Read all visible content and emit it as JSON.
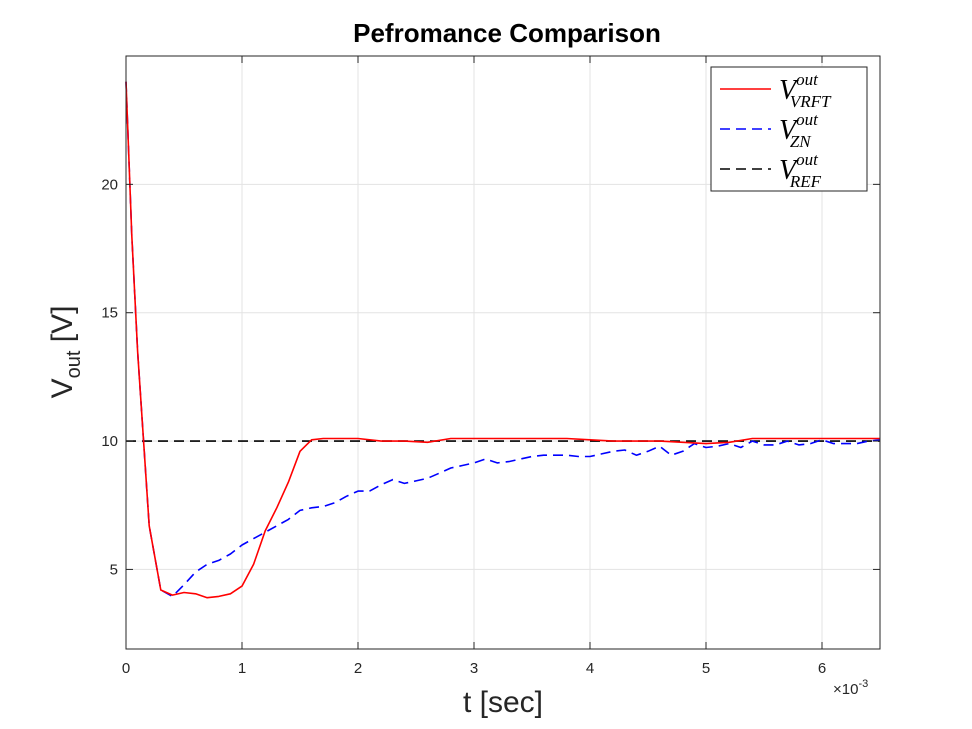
{
  "chart_data": {
    "type": "line",
    "title": "Pefromance Comparison",
    "xlabel": "t [sec]",
    "ylabel_main": "V",
    "ylabel_sub": "out",
    "ylabel_rest": " [V]",
    "x_exponent_prefix": "×10",
    "x_exponent": "-3",
    "xlim": [
      0,
      6.5
    ],
    "ylim": [
      1.9,
      25
    ],
    "xticks": [
      0,
      1,
      2,
      3,
      4,
      5,
      6
    ],
    "xtick_labels": [
      "0",
      "1",
      "2",
      "3",
      "4",
      "5",
      "6"
    ],
    "yticks": [
      5,
      10,
      15,
      20
    ],
    "ytick_labels": [
      "5",
      "10",
      "15",
      "20"
    ],
    "grid": true,
    "legend_location": "top-right",
    "series": [
      {
        "legend_main": "V",
        "legend_sup": "out",
        "legend_sub": "VRFT",
        "color": "#ff0000",
        "dash": "solid",
        "x": [
          0,
          0.05,
          0.1,
          0.2,
          0.3,
          0.4,
          0.5,
          0.6,
          0.7,
          0.8,
          0.9,
          1.0,
          1.1,
          1.2,
          1.3,
          1.4,
          1.5,
          1.6,
          1.7,
          1.8,
          1.9,
          2.0,
          2.2,
          2.4,
          2.6,
          2.8,
          3.0,
          3.2,
          3.4,
          3.6,
          3.8,
          4.0,
          4.2,
          4.4,
          4.6,
          4.8,
          5.0,
          5.2,
          5.4,
          5.6,
          5.8,
          6.0,
          6.2,
          6.4,
          6.5
        ],
        "y": [
          24,
          18,
          13.5,
          6.7,
          4.2,
          4.0,
          4.1,
          4.05,
          3.9,
          3.95,
          4.05,
          4.35,
          5.2,
          6.5,
          7.4,
          8.4,
          9.6,
          10.05,
          10.1,
          10.1,
          10.1,
          10.1,
          10.0,
          10.0,
          9.95,
          10.1,
          10.1,
          10.1,
          10.1,
          10.1,
          10.1,
          10.05,
          10.0,
          10.0,
          10.0,
          9.95,
          9.9,
          9.95,
          10.1,
          10.1,
          10.1,
          10.1,
          10.1,
          10.1,
          10.1
        ]
      },
      {
        "legend_main": "V",
        "legend_sup": "out",
        "legend_sub": "ZN",
        "color": "#0000ff",
        "dash": "dashed",
        "x": [
          0,
          0.05,
          0.1,
          0.2,
          0.3,
          0.4,
          0.5,
          0.6,
          0.7,
          0.8,
          0.9,
          1.0,
          1.1,
          1.2,
          1.3,
          1.4,
          1.5,
          1.6,
          1.7,
          1.8,
          1.9,
          2.0,
          2.1,
          2.2,
          2.3,
          2.4,
          2.5,
          2.6,
          2.7,
          2.8,
          2.9,
          3.0,
          3.1,
          3.2,
          3.3,
          3.4,
          3.5,
          3.6,
          3.7,
          3.8,
          3.9,
          4.0,
          4.1,
          4.2,
          4.3,
          4.4,
          4.5,
          4.6,
          4.7,
          4.8,
          4.9,
          5.0,
          5.1,
          5.2,
          5.3,
          5.4,
          5.5,
          5.6,
          5.7,
          5.8,
          5.9,
          6.0,
          6.1,
          6.2,
          6.3,
          6.4,
          6.5
        ],
        "y": [
          24,
          18,
          13.5,
          6.7,
          4.2,
          3.95,
          4.4,
          4.9,
          5.2,
          5.35,
          5.6,
          5.95,
          6.2,
          6.45,
          6.7,
          6.95,
          7.3,
          7.4,
          7.45,
          7.6,
          7.85,
          8.05,
          8.05,
          8.3,
          8.5,
          8.35,
          8.45,
          8.55,
          8.75,
          8.95,
          9.05,
          9.15,
          9.3,
          9.15,
          9.2,
          9.3,
          9.4,
          9.45,
          9.45,
          9.45,
          9.4,
          9.4,
          9.5,
          9.6,
          9.65,
          9.45,
          9.6,
          9.8,
          9.45,
          9.6,
          9.9,
          9.75,
          9.8,
          9.9,
          9.75,
          10.0,
          9.85,
          9.85,
          10.0,
          9.85,
          9.9,
          10.05,
          9.9,
          9.9,
          9.9,
          10.0,
          10.05
        ]
      },
      {
        "legend_main": "V",
        "legend_sup": "out",
        "legend_sub": "REF",
        "color": "#000000",
        "dash": "dashed",
        "x": [
          0,
          6.5
        ],
        "y": [
          10,
          10
        ]
      }
    ]
  }
}
